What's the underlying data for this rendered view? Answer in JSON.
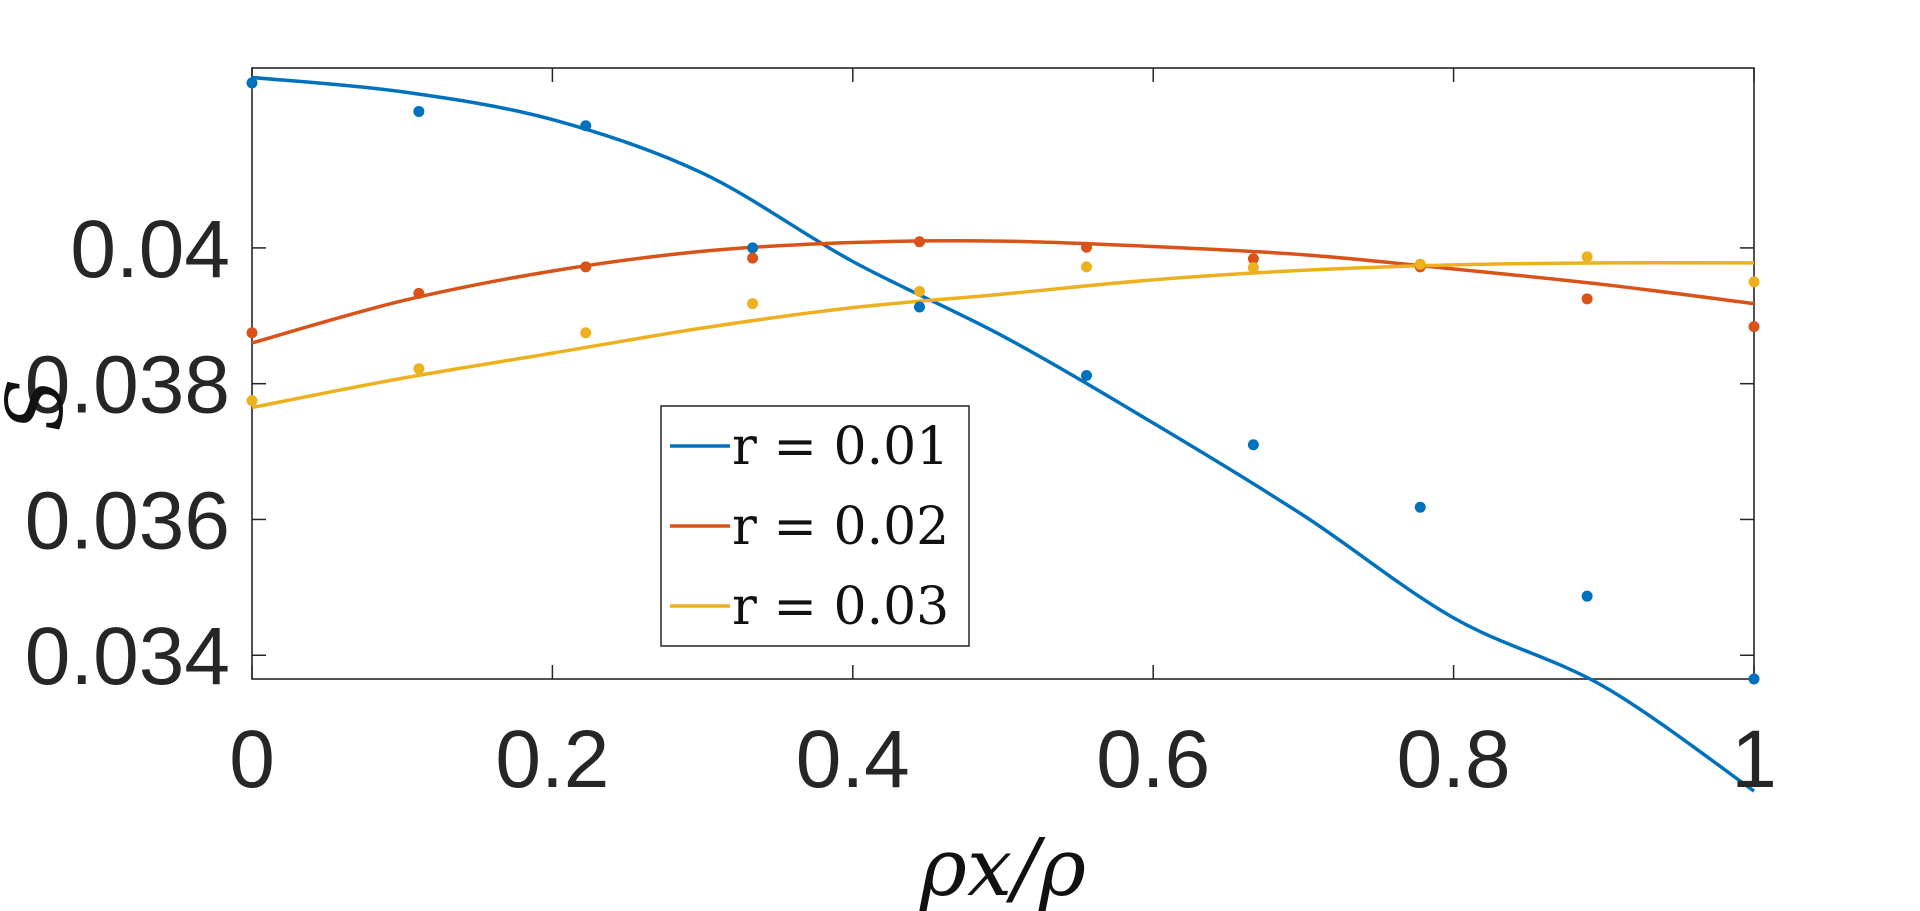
{
  "chart_data": {
    "type": "line",
    "xlabel": "ρx/ρ",
    "ylabel": "S",
    "xlim": [
      0,
      1
    ],
    "ylim": [
      0.03365,
      0.04265
    ],
    "x_ticks": [
      "0",
      "0.2",
      "0.4",
      "0.6",
      "0.8",
      "1"
    ],
    "x_tick_values": [
      0,
      0.2,
      0.4,
      0.6,
      0.8,
      1
    ],
    "y_ticks": [
      "0.034",
      "0.036",
      "0.038",
      "0.04"
    ],
    "y_tick_values": [
      0.034,
      0.036,
      0.038,
      0.04
    ],
    "grid": false,
    "legend_position": "lower-center",
    "series": [
      {
        "name": "r = 0.01",
        "color": "#0072BD",
        "points_x": [
          0,
          0.1111,
          0.2222,
          0.3333,
          0.4444,
          0.5556,
          0.6667,
          0.7778,
          0.8889,
          1
        ],
        "points_y": [
          0.04243,
          0.04201,
          0.0418,
          0.04,
          0.03913,
          0.03812,
          0.0371,
          0.03618,
          0.03487,
          0.03365
        ],
        "fit_x": [
          0,
          0.1,
          0.2,
          0.3,
          0.4,
          0.5,
          0.6,
          0.7,
          0.8,
          0.9,
          1
        ],
        "fit_y": [
          0.04251,
          0.0423,
          0.04189,
          0.0411,
          0.0398,
          0.0387,
          0.03742,
          0.03606,
          0.03455,
          0.03354,
          0.032
        ]
      },
      {
        "name": "r = 0.02",
        "color": "#D95319",
        "points_x": [
          0,
          0.1111,
          0.2222,
          0.3333,
          0.4444,
          0.5556,
          0.6667,
          0.7778,
          0.8889,
          1
        ],
        "points_y": [
          0.03875,
          0.03933,
          0.03972,
          0.03985,
          0.04009,
          0.04001,
          0.03984,
          0.03972,
          0.03925,
          0.03884
        ],
        "fit_x": [
          0,
          0.1,
          0.2,
          0.3,
          0.4,
          0.5,
          0.6,
          0.7,
          0.8,
          0.9,
          1
        ],
        "fit_y": [
          0.0386,
          0.03922,
          0.03966,
          0.03995,
          0.04008,
          0.0401,
          0.04002,
          0.0399,
          0.03969,
          0.03946,
          0.03918
        ]
      },
      {
        "name": "r = 0.03",
        "color": "#EDB120",
        "points_x": [
          0,
          0.1111,
          0.2222,
          0.3333,
          0.4444,
          0.5556,
          0.6667,
          0.7778,
          0.8889,
          1
        ],
        "points_y": [
          0.03775,
          0.03822,
          0.03875,
          0.03918,
          0.03936,
          0.03972,
          0.03971,
          0.03976,
          0.03987,
          0.0395
        ],
        "fit_x": [
          0,
          0.1,
          0.2,
          0.3,
          0.4,
          0.5,
          0.6,
          0.7,
          0.8,
          0.9,
          1
        ],
        "fit_y": [
          0.03765,
          0.03808,
          0.03845,
          0.03882,
          0.03912,
          0.03932,
          0.03953,
          0.03967,
          0.03975,
          0.03978,
          0.03978
        ]
      }
    ]
  }
}
